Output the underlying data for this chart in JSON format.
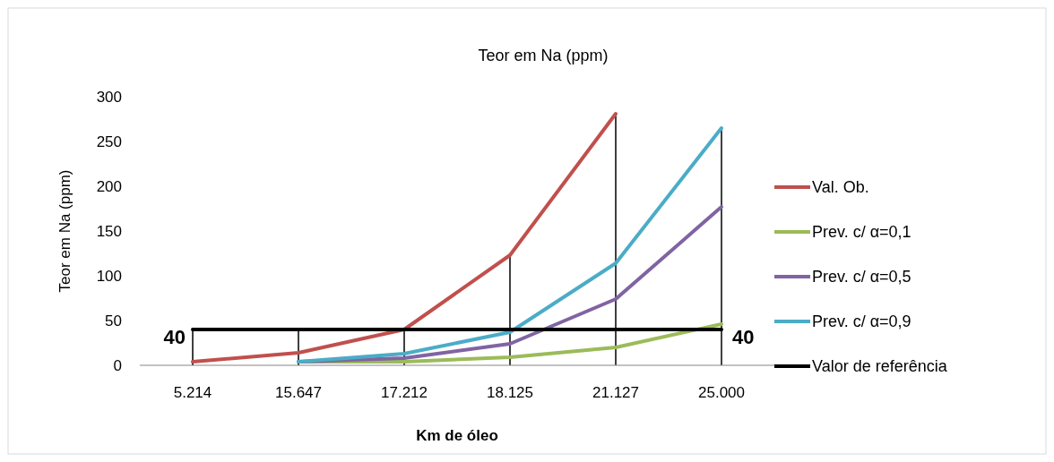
{
  "chart_data": {
    "type": "line",
    "title": "Teor em Na (ppm)",
    "xlabel": "Km de óleo",
    "ylabel": "Teor em Na (ppm)",
    "categories": [
      "5.214",
      "15.647",
      "17.212",
      "18.125",
      "21.127",
      "25.000"
    ],
    "series": [
      {
        "name": "Val. Ob.",
        "color": "#c0504d",
        "values": [
          4,
          14,
          40,
          123,
          281,
          null
        ],
        "errors": [
          null,
          null,
          null,
          [
            0,
            123
          ],
          [
            0,
            281
          ],
          null
        ]
      },
      {
        "name": "Prev. c/ α=0,1",
        "color": "#9bbb59",
        "values": [
          null,
          4,
          4,
          9,
          20,
          46
        ]
      },
      {
        "name": "Prev. c/ α=0,5",
        "color": "#8064a2",
        "values": [
          null,
          4,
          8,
          24,
          74,
          177
        ]
      },
      {
        "name": "Prev. c/ α=0,9",
        "color": "#4bacc6",
        "values": [
          null,
          4,
          13,
          37,
          114,
          265
        ],
        "errors": [
          null,
          null,
          null,
          null,
          null,
          [
            0,
            265
          ]
        ]
      },
      {
        "name": "Valor de referência",
        "color": "#000000",
        "values": [
          40,
          40,
          40,
          40,
          40,
          40
        ],
        "errors": [
          [
            0,
            40
          ],
          [
            0,
            40
          ],
          [
            0,
            40
          ],
          null,
          null,
          null
        ],
        "value_labels": [
          "40",
          null,
          null,
          null,
          null,
          "40"
        ]
      }
    ],
    "ylim": [
      0,
      300
    ],
    "yticks": [
      0,
      50,
      100,
      150,
      200,
      250,
      300
    ],
    "grid": false,
    "legend": "right",
    "marker": "none"
  }
}
